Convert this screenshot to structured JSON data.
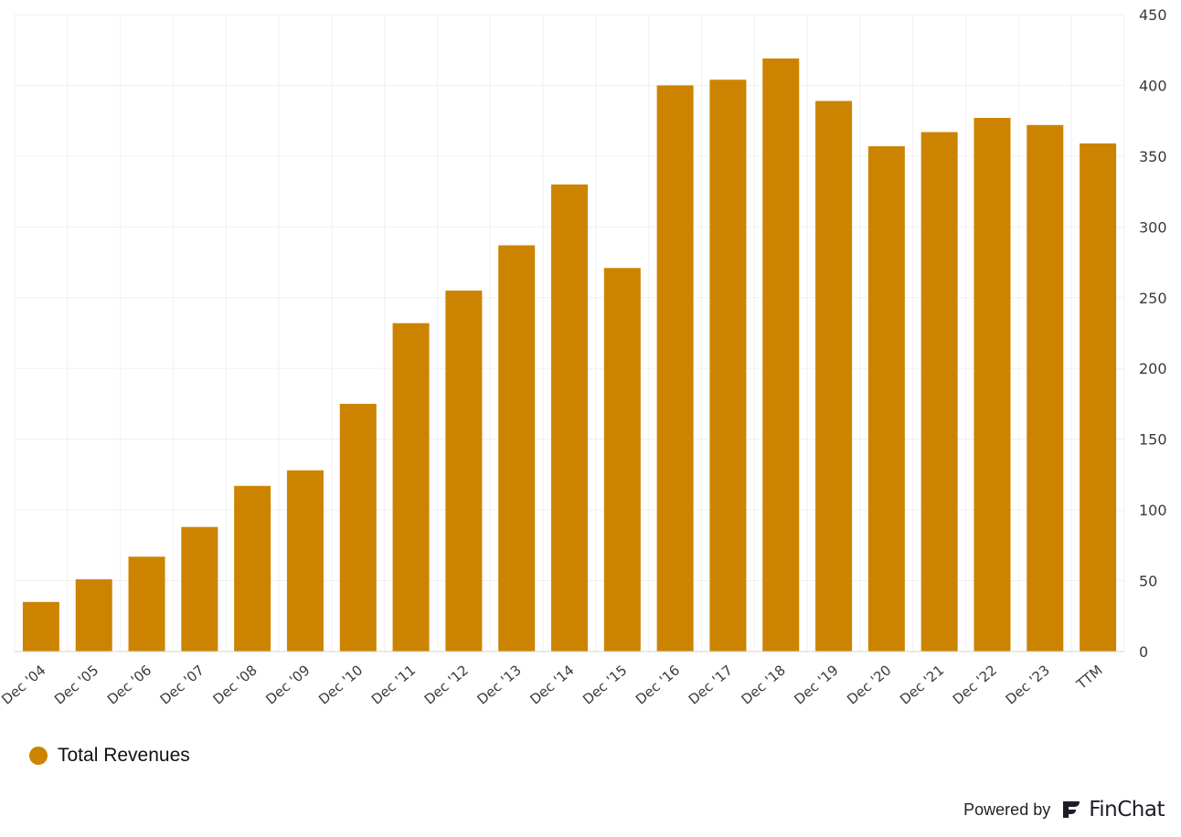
{
  "chart_data": {
    "type": "bar",
    "categories": [
      "Dec '04",
      "Dec '05",
      "Dec '06",
      "Dec '07",
      "Dec '08",
      "Dec '09",
      "Dec '10",
      "Dec '11",
      "Dec '12",
      "Dec '13",
      "Dec '14",
      "Dec '15",
      "Dec '16",
      "Dec '17",
      "Dec '18",
      "Dec '19",
      "Dec '20",
      "Dec '21",
      "Dec '22",
      "Dec '23",
      "TTM"
    ],
    "series": [
      {
        "name": "Total Revenues",
        "values": [
          35,
          51,
          67,
          88,
          117,
          128,
          175,
          232,
          255,
          287,
          330,
          271,
          400,
          404,
          419,
          389,
          357,
          367,
          377,
          372,
          359
        ]
      }
    ],
    "ylim": [
      0,
      450
    ],
    "yticks": [
      0,
      50,
      100,
      150,
      200,
      250,
      300,
      350,
      400,
      450
    ],
    "y_axis_position": "right",
    "grid": true,
    "legend_position": "bottom-left",
    "colors": {
      "bar": "#CC8400",
      "grid": "#f0f0f0",
      "axis": "#d6d6d6"
    }
  },
  "legend": {
    "label": "Total Revenues"
  },
  "footer": {
    "powered_by": "Powered by",
    "brand": "FinChat"
  }
}
